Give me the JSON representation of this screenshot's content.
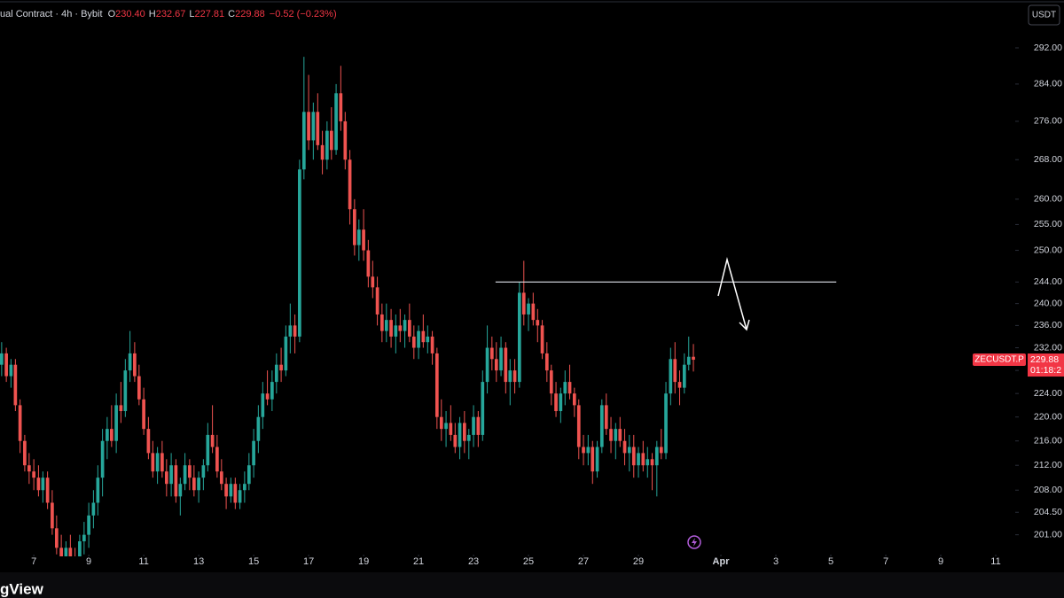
{
  "header": {
    "title": "ual Contract · 4h · Bybit",
    "ohlc": [
      {
        "label": "O",
        "value": "230.40"
      },
      {
        "label": "H",
        "value": "232.67"
      },
      {
        "label": "L",
        "value": "227.81"
      },
      {
        "label": "C",
        "value": "229.88"
      }
    ],
    "change": "−0.52 (−0.23%)"
  },
  "currency_button": "USDT",
  "chart_data": {
    "type": "candlestick",
    "x": [
      5.83,
      6.0,
      6.17,
      6.33,
      6.5,
      6.67,
      6.83,
      7.0,
      7.17,
      7.33,
      7.5,
      7.67,
      7.83,
      8.0,
      8.17,
      8.33,
      8.5,
      8.67,
      8.83,
      9.0,
      9.17,
      9.33,
      9.5,
      9.67,
      9.83,
      10.0,
      10.17,
      10.33,
      10.5,
      10.67,
      10.83,
      11.0,
      11.17,
      11.33,
      11.5,
      11.67,
      11.83,
      12.0,
      12.17,
      12.33,
      12.5,
      12.67,
      12.83,
      13.0,
      13.17,
      13.33,
      13.5,
      13.67,
      13.83,
      14.0,
      14.17,
      14.33,
      14.5,
      14.67,
      14.83,
      15.0,
      15.17,
      15.33,
      15.5,
      15.67,
      15.83,
      16.0,
      16.17,
      16.33,
      16.5,
      16.67,
      16.83,
      17.0,
      17.17,
      17.33,
      17.5,
      17.67,
      17.83,
      18.0,
      18.17,
      18.33,
      18.5,
      18.67,
      18.83,
      19.0,
      19.17,
      19.33,
      19.5,
      19.67,
      19.83,
      20.0,
      20.17,
      20.33,
      20.5,
      20.67,
      20.83,
      21.0,
      21.17,
      21.33,
      21.5,
      21.67,
      21.83,
      22.0,
      22.17,
      22.33,
      22.5,
      22.67,
      22.83,
      23.0,
      23.17,
      23.33,
      23.5,
      23.67,
      23.83,
      24.0,
      24.17,
      24.33,
      24.5,
      24.67,
      24.83,
      25.0,
      25.17,
      25.33,
      25.5,
      25.67,
      25.83,
      26.0,
      26.17,
      26.33,
      26.5,
      26.67,
      26.83,
      27.0,
      27.17,
      27.33,
      27.5,
      27.67,
      27.83,
      28.0,
      28.17,
      28.33,
      28.5,
      28.67,
      28.83,
      29.0,
      29.17,
      29.33,
      29.5,
      29.67,
      29.83,
      30.0,
      30.17,
      30.33,
      30.5,
      30.67,
      30.83,
      31.0
    ],
    "candles": [
      [
        229,
        233,
        227,
        231
      ],
      [
        231,
        232,
        226,
        227
      ],
      [
        227,
        230,
        225,
        229
      ],
      [
        229,
        230,
        221,
        222
      ],
      [
        222,
        223,
        214,
        216
      ],
      [
        216,
        217,
        211,
        212
      ],
      [
        212,
        214,
        209,
        211
      ],
      [
        211,
        213,
        208,
        210
      ],
      [
        210,
        212,
        207,
        208
      ],
      [
        208,
        211,
        206,
        210
      ],
      [
        210,
        211,
        205,
        206
      ],
      [
        206,
        208,
        201,
        202
      ],
      [
        202,
        204,
        198,
        199
      ],
      [
        199,
        201,
        196,
        197
      ],
      [
        197,
        200,
        195,
        199
      ],
      [
        199,
        201,
        196,
        197
      ],
      [
        197,
        199,
        194,
        196
      ],
      [
        196,
        201,
        195,
        200
      ],
      [
        200,
        203,
        198,
        201
      ],
      [
        201,
        206,
        199,
        204
      ],
      [
        204,
        208,
        202,
        206
      ],
      [
        206,
        212,
        204,
        210
      ],
      [
        210,
        218,
        207,
        216
      ],
      [
        216,
        220,
        213,
        218
      ],
      [
        218,
        222,
        215,
        216
      ],
      [
        216,
        224,
        214,
        222
      ],
      [
        222,
        226,
        219,
        221
      ],
      [
        221,
        230,
        220,
        228
      ],
      [
        228,
        235,
        226,
        231
      ],
      [
        231,
        233,
        226,
        227
      ],
      [
        227,
        229,
        222,
        223
      ],
      [
        223,
        225,
        217,
        218
      ],
      [
        218,
        220,
        213,
        214
      ],
      [
        214,
        216,
        210,
        211
      ],
      [
        211,
        215,
        209,
        214
      ],
      [
        214,
        216,
        210,
        211
      ],
      [
        211,
        213,
        207,
        209
      ],
      [
        209,
        214,
        207,
        212
      ],
      [
        212,
        213,
        206,
        207
      ],
      [
        207,
        210,
        204,
        209
      ],
      [
        209,
        214,
        208,
        212
      ],
      [
        212,
        213,
        208,
        210
      ],
      [
        210,
        212,
        207,
        208
      ],
      [
        208,
        211,
        206,
        210
      ],
      [
        210,
        213,
        208,
        212
      ],
      [
        212,
        219,
        211,
        217
      ],
      [
        217,
        222,
        214,
        215
      ],
      [
        215,
        217,
        210,
        211
      ],
      [
        211,
        213,
        208,
        209
      ],
      [
        209,
        210,
        205,
        207
      ],
      [
        207,
        210,
        206,
        209
      ],
      [
        209,
        210,
        205,
        206
      ],
      [
        206,
        209,
        205,
        208
      ],
      [
        208,
        211,
        206,
        209
      ],
      [
        209,
        214,
        208,
        212
      ],
      [
        212,
        218,
        210,
        216
      ],
      [
        216,
        222,
        214,
        220
      ],
      [
        220,
        226,
        218,
        224
      ],
      [
        224,
        228,
        222,
        223
      ],
      [
        223,
        228,
        221,
        226
      ],
      [
        226,
        231,
        224,
        229
      ],
      [
        229,
        232,
        226,
        228
      ],
      [
        228,
        236,
        227,
        234
      ],
      [
        234,
        240,
        231,
        236
      ],
      [
        236,
        238,
        231,
        234
      ],
      [
        234,
        268,
        233,
        266
      ],
      [
        266,
        290,
        264,
        278
      ],
      [
        278,
        286,
        270,
        272
      ],
      [
        272,
        280,
        268,
        278
      ],
      [
        278,
        282,
        270,
        271
      ],
      [
        271,
        274,
        265,
        268
      ],
      [
        268,
        276,
        266,
        274
      ],
      [
        274,
        279,
        268,
        270
      ],
      [
        270,
        284,
        269,
        282
      ],
      [
        282,
        288,
        274,
        276
      ],
      [
        276,
        278,
        266,
        268
      ],
      [
        268,
        270,
        255,
        258
      ],
      [
        258,
        260,
        249,
        251
      ],
      [
        251,
        256,
        248,
        254
      ],
      [
        254,
        258,
        248,
        250
      ],
      [
        250,
        252,
        243,
        245
      ],
      [
        245,
        248,
        241,
        243
      ],
      [
        243,
        245,
        236,
        238
      ],
      [
        238,
        240,
        233,
        235
      ],
      [
        235,
        240,
        233,
        237
      ],
      [
        237,
        239,
        232,
        234
      ],
      [
        234,
        238,
        231,
        236
      ],
      [
        236,
        239,
        233,
        235
      ],
      [
        235,
        238,
        232,
        237
      ],
      [
        237,
        240,
        233,
        234
      ],
      [
        234,
        236,
        230,
        232
      ],
      [
        232,
        236,
        230,
        235
      ],
      [
        235,
        238,
        232,
        233
      ],
      [
        233,
        236,
        231,
        234
      ],
      [
        234,
        235,
        229,
        231
      ],
      [
        231,
        232,
        218,
        220
      ],
      [
        220,
        223,
        216,
        218
      ],
      [
        218,
        221,
        215,
        219
      ],
      [
        219,
        222,
        216,
        217
      ],
      [
        217,
        219,
        214,
        215
      ],
      [
        215,
        220,
        213,
        219
      ],
      [
        219,
        221,
        214,
        216
      ],
      [
        216,
        218,
        213,
        217
      ],
      [
        217,
        222,
        215,
        220
      ],
      [
        220,
        221,
        215,
        217
      ],
      [
        217,
        228,
        216,
        226
      ],
      [
        226,
        236,
        224,
        232
      ],
      [
        232,
        234,
        228,
        230
      ],
      [
        230,
        233,
        226,
        228
      ],
      [
        228,
        234,
        227,
        232
      ],
      [
        232,
        233,
        224,
        226
      ],
      [
        226,
        230,
        222,
        228
      ],
      [
        228,
        230,
        224,
        226
      ],
      [
        226,
        244,
        225,
        242
      ],
      [
        242,
        248,
        236,
        238
      ],
      [
        238,
        241,
        235,
        240
      ],
      [
        240,
        242,
        236,
        237
      ],
      [
        237,
        239,
        233,
        236
      ],
      [
        236,
        237,
        230,
        231
      ],
      [
        231,
        233,
        226,
        228
      ],
      [
        228,
        229,
        222,
        224
      ],
      [
        224,
        226,
        220,
        221
      ],
      [
        221,
        225,
        219,
        224
      ],
      [
        224,
        228,
        222,
        226
      ],
      [
        226,
        229,
        223,
        224
      ],
      [
        224,
        225,
        220,
        222
      ],
      [
        222,
        223,
        213,
        215
      ],
      [
        215,
        217,
        212,
        214
      ],
      [
        214,
        217,
        212,
        215
      ],
      [
        215,
        216,
        209,
        211
      ],
      [
        211,
        216,
        210,
        215
      ],
      [
        215,
        223,
        214,
        222
      ],
      [
        222,
        224,
        217,
        218
      ],
      [
        218,
        220,
        214,
        216
      ],
      [
        216,
        219,
        213,
        218
      ],
      [
        218,
        220,
        215,
        216
      ],
      [
        216,
        218,
        212,
        214
      ],
      [
        214,
        217,
        211,
        215
      ],
      [
        215,
        217,
        210,
        212
      ],
      [
        212,
        215,
        210,
        214
      ],
      [
        214,
        216,
        211,
        212
      ],
      [
        212,
        215,
        210,
        213
      ],
      [
        213,
        214,
        208,
        212
      ],
      [
        212,
        216,
        207,
        215
      ],
      [
        215,
        218,
        213,
        214
      ],
      [
        214,
        226,
        213,
        224
      ],
      [
        224,
        232,
        222,
        230
      ],
      [
        230,
        233,
        224,
        226
      ],
      [
        226,
        228,
        222,
        225
      ],
      [
        225,
        231,
        224,
        229
      ],
      [
        229,
        234,
        228,
        230.4
      ],
      [
        230.4,
        232.67,
        227.81,
        229.88
      ]
    ],
    "up_color": "#26a69a",
    "down_color": "#ef5350",
    "xlim": [
      5.77,
      42.71
    ],
    "xticks": [
      7,
      9,
      11,
      13,
      15,
      17,
      19,
      21,
      23,
      25,
      27,
      29,
      {
        "value": 32,
        "label": "Apr"
      },
      {
        "value": 34,
        "label": "3"
      },
      {
        "value": 36,
        "label": "5"
      },
      {
        "value": 38,
        "label": "7"
      },
      {
        "value": 40,
        "label": "9"
      },
      {
        "value": 42,
        "label": "11"
      }
    ],
    "ylim": [
      197.7,
      296.8
    ],
    "log_scale": true,
    "grid": false,
    "yticks": [
      {
        "value": 292,
        "label": "292.00"
      },
      {
        "value": 284,
        "label": "284.00"
      },
      {
        "value": 276,
        "label": "276.00"
      },
      {
        "value": 268,
        "label": "268.00"
      },
      {
        "value": 260,
        "label": "260.00"
      },
      {
        "value": 255,
        "label": "255.00"
      },
      {
        "value": 250,
        "label": "250.00"
      },
      {
        "value": 244,
        "label": "244.00"
      },
      {
        "value": 240,
        "label": "240.00"
      },
      {
        "value": 236,
        "label": "236.00"
      },
      {
        "value": 232,
        "label": "232.00"
      },
      {
        "value": 228,
        "label": "228.00"
      },
      {
        "value": 224,
        "label": "224.00"
      },
      {
        "value": 220,
        "label": "220.00"
      },
      {
        "value": 216,
        "label": "216.00"
      },
      {
        "value": 212,
        "label": "212.00"
      },
      {
        "value": 208,
        "label": "208.00"
      },
      {
        "value": 204.5,
        "label": "204.50"
      },
      {
        "value": 201,
        "label": "201.00"
      }
    ],
    "hline": {
      "value": 244,
      "x": [
        23.8,
        36.2
      ]
    },
    "price_label": {
      "symbol": "ZECUSDT.P",
      "price": "229.88",
      "countdown": "01:18:2"
    }
  },
  "footer": {
    "logo": "gView"
  }
}
